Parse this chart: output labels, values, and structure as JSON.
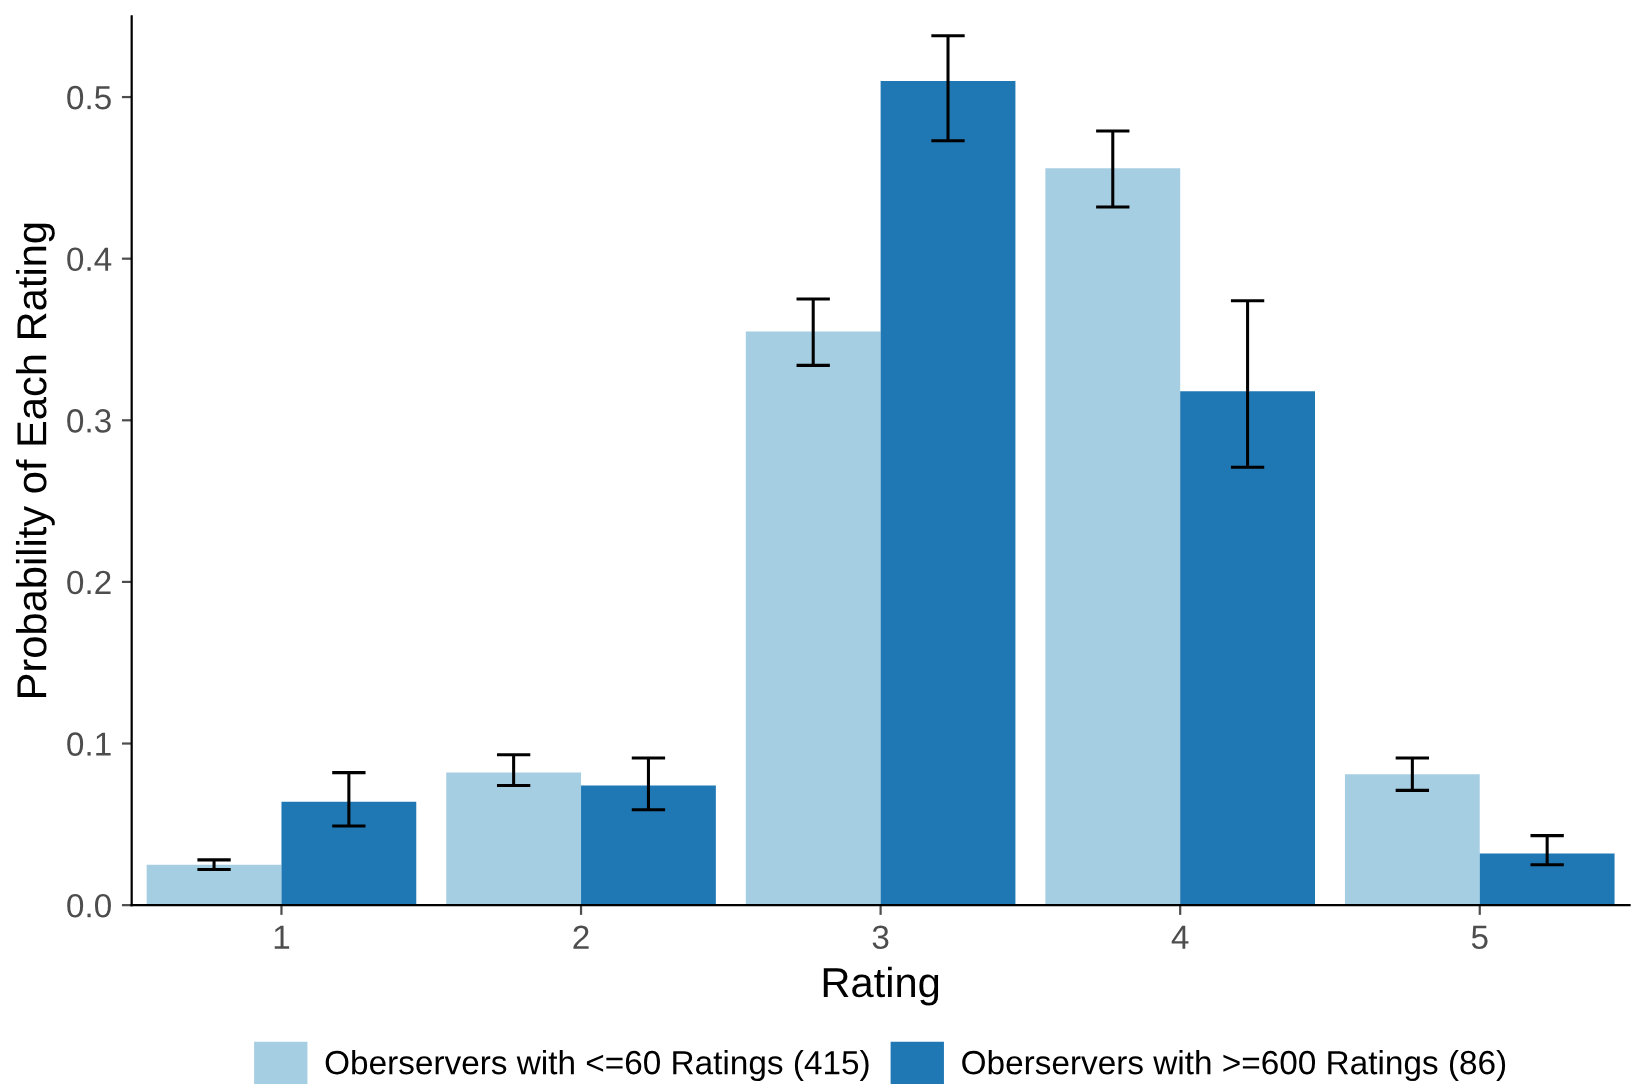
{
  "chart_data": {
    "type": "bar",
    "xlabel": "Rating",
    "ylabel": "Probability of Each Rating",
    "categories": [
      "1",
      "2",
      "3",
      "4",
      "5"
    ],
    "series": [
      {
        "name": "Oberservers with <=60 Ratings (415)",
        "color": "#a6cee3",
        "values": [
          0.025,
          0.082,
          0.355,
          0.456,
          0.081
        ],
        "errors": [
          [
            0.022,
            0.028
          ],
          [
            0.074,
            0.093
          ],
          [
            0.334,
            0.375
          ],
          [
            0.432,
            0.479
          ],
          [
            0.071,
            0.091
          ]
        ]
      },
      {
        "name": "Oberservers with >=600 Ratings (86)",
        "color": "#1f78b4",
        "values": [
          0.064,
          0.074,
          0.51,
          0.318,
          0.032
        ],
        "errors": [
          [
            0.049,
            0.082
          ],
          [
            0.059,
            0.091
          ],
          [
            0.473,
            0.538
          ],
          [
            0.271,
            0.374
          ],
          [
            0.025,
            0.043
          ]
        ]
      }
    ],
    "ylim": [
      0,
      0.55
    ],
    "yticks": [
      {
        "value": 0,
        "label": "0.0"
      },
      0.1,
      0.2,
      0.3,
      0.4,
      0.5
    ],
    "grid": false,
    "legend": "bottom"
  }
}
